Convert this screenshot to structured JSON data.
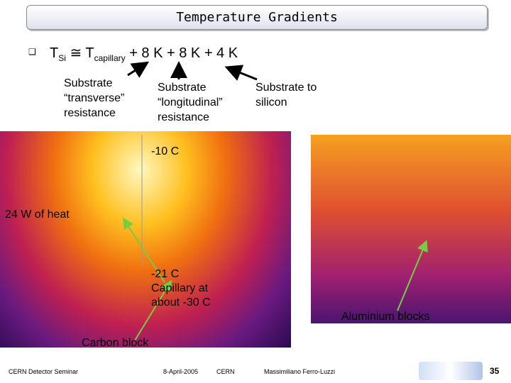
{
  "header": {
    "title": "Temperature Gradients"
  },
  "bullet": {
    "t": "T",
    "t_sub": "Si",
    "approx": " ≅ T",
    "cap_sub": "capillary",
    "rest": " + 8 K + 8 K + 4 K"
  },
  "labels": [
    {
      "lines": [
        "Substrate",
        "“transverse”",
        "resistance"
      ]
    },
    {
      "lines": [
        "Substrate",
        "“longitudinal”",
        "resistance"
      ]
    },
    {
      "lines": [
        "Substrate to",
        "silicon"
      ]
    }
  ],
  "annotations": {
    "top_temp": "-10 C",
    "heat": "24 W of heat",
    "bottom_temp": "-21 C",
    "capillary": [
      "Capillary at",
      "about -30 C"
    ],
    "aluminium": "Aluminium blocks",
    "carbon": "Carbon block"
  },
  "footer": {
    "event": "CERN Detector Seminar",
    "date": "8-April-2005",
    "place": "CERN",
    "author": "Massimiliano Ferro-Luzzi",
    "page": "35"
  }
}
